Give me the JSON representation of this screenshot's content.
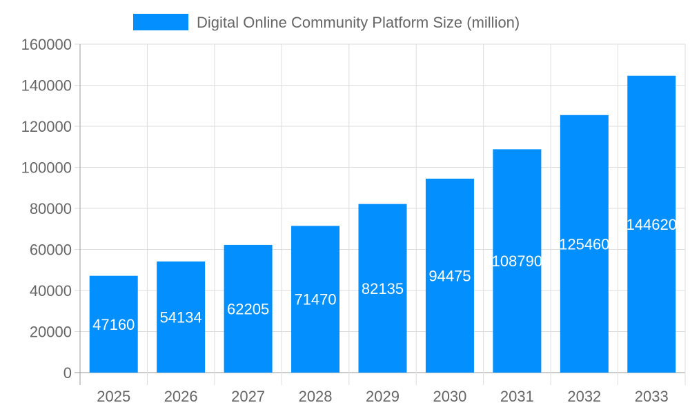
{
  "chart_data": {
    "type": "bar",
    "title": "",
    "xlabel": "",
    "ylabel": "",
    "categories": [
      "2025",
      "2026",
      "2027",
      "2028",
      "2029",
      "2030",
      "2031",
      "2032",
      "2033"
    ],
    "series": [
      {
        "name": "Digital Online Community Platform Size (million)",
        "values": [
          47160,
          54134,
          62205,
          71470,
          82135,
          94475,
          108790,
          125460,
          144620
        ],
        "color": "#038ffe"
      }
    ],
    "ylim": [
      0,
      160000
    ],
    "yticks": [
      0,
      20000,
      40000,
      60000,
      80000,
      100000,
      120000,
      140000,
      160000
    ],
    "grid": true,
    "legend": "top-center",
    "data_labels": true
  }
}
